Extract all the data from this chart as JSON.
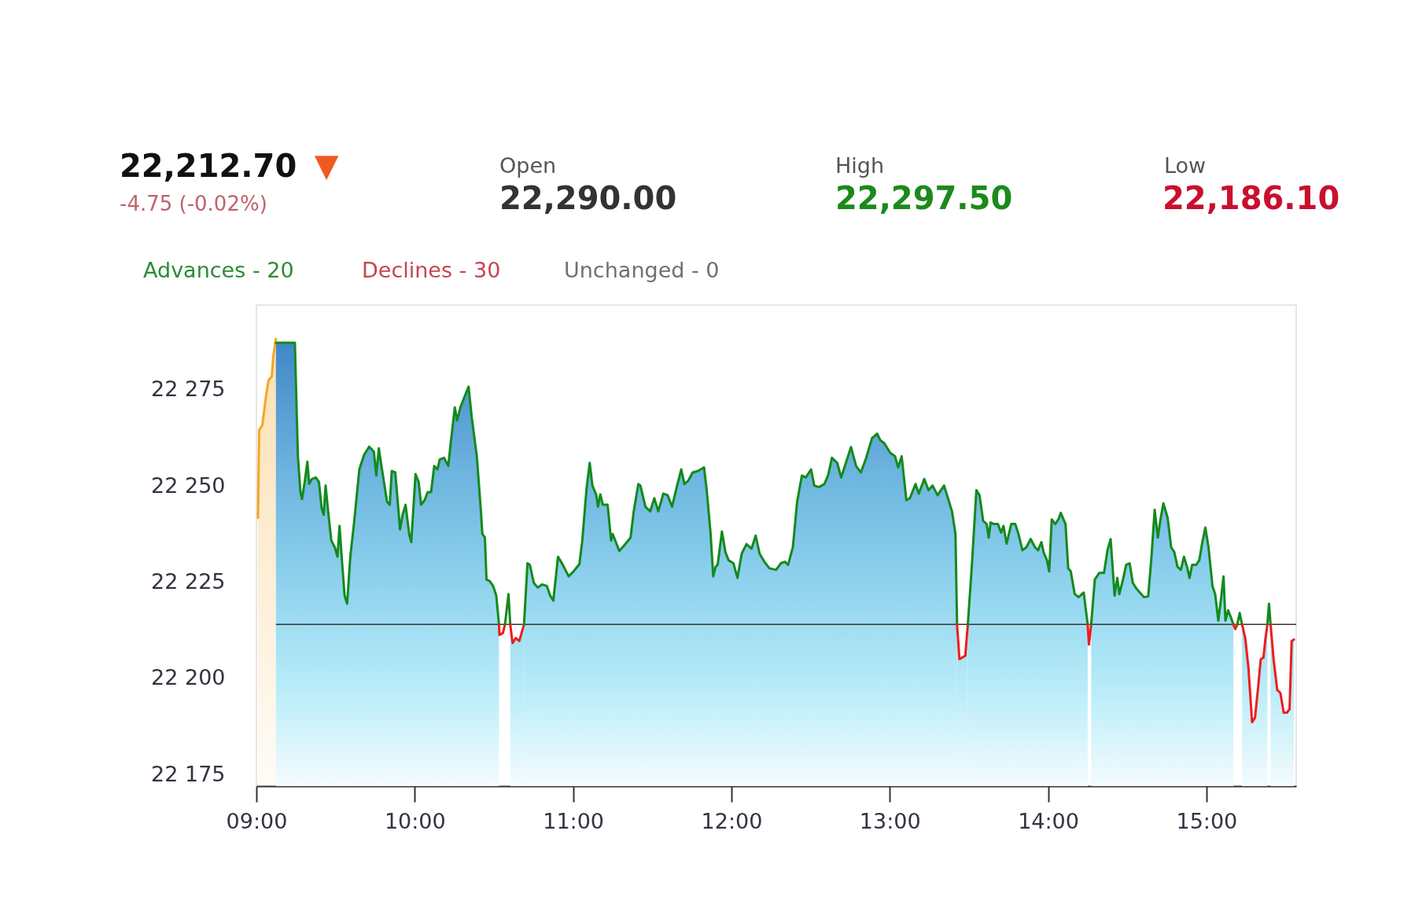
{
  "chart_data": {
    "type": "area",
    "title": "22,212.70",
    "subtitle": "-4.75 (-0.02%)",
    "annotations": [
      "▼",
      "Open",
      "22,290.00",
      "High",
      "22,297.50",
      "Low",
      "22,186.10",
      "Advances - 20",
      "Declines - 30",
      "Unchanged - 0"
    ],
    "xlim": [
      9,
      15.567
    ],
    "xticks": [
      {
        "value": 9,
        "label": "09:00"
      },
      {
        "value": 10,
        "label": "10:00"
      },
      {
        "value": 11,
        "label": "11:00"
      },
      {
        "value": 12,
        "label": "12:00"
      },
      {
        "value": 13,
        "label": "13:00"
      },
      {
        "value": 14,
        "label": "14:00"
      },
      {
        "value": 15,
        "label": "15:00"
      }
    ],
    "ylim": [
      22172,
      22297
    ],
    "yticks": [
      {
        "value": 22175,
        "label": "22 175"
      },
      {
        "value": 22200,
        "label": "22 200"
      },
      {
        "value": 22225,
        "label": "22 225"
      },
      {
        "value": 22250,
        "label": "22 250"
      },
      {
        "value": 22275,
        "label": "22 275"
      }
    ],
    "ref_lines": [
      {
        "axis": "y",
        "value": 22214,
        "color": "#333333"
      }
    ],
    "series": [
      {
        "color": "#f5a623",
        "x": [
          9.01,
          9.017,
          9.037,
          9.062,
          9.077,
          9.097,
          9.107,
          9.123
        ],
        "values": [
          22241.7,
          22264.5,
          22265.7,
          22273.7,
          22277.5,
          22278.4,
          22283.9,
          22288.2
        ]
      },
      {
        "color": "#138a1c",
        "x": [
          9.123,
          9.243,
          9.252,
          9.262,
          9.278,
          9.288,
          9.305,
          9.322,
          9.333,
          9.35,
          9.375,
          9.395,
          9.412,
          9.425,
          9.437,
          9.453,
          9.473,
          9.495,
          9.512,
          9.525,
          9.54,
          9.557,
          9.573,
          9.593,
          9.618,
          9.65,
          9.68,
          9.712,
          9.742,
          9.757,
          9.773,
          9.793,
          9.825,
          9.842,
          9.855,
          9.877,
          9.907,
          9.923,
          9.942,
          9.965,
          9.978,
          10.005,
          10.025,
          10.04,
          10.062,
          10.082,
          10.103,
          10.123,
          10.143,
          10.158,
          10.185,
          10.212,
          10.227,
          10.253,
          10.268,
          10.288,
          10.308,
          10.34,
          10.36,
          10.392,
          10.418,
          10.427,
          10.443,
          10.453,
          10.473,
          10.495,
          10.515,
          10.532
        ],
        "values": [
          22287.2,
          22287.2,
          22272.9,
          22257.7,
          22248.4,
          22246.6,
          22251.0,
          22256.3,
          22250.5,
          22251.8,
          22252.2,
          22251.0,
          22244.2,
          22242.5,
          22250.1,
          22243.4,
          22235.8,
          22234.1,
          22231.6,
          22239.6,
          22230.7,
          22221.5,
          22219.4,
          22231.6,
          22240.9,
          22254.3,
          22258.1,
          22260.2,
          22258.9,
          22252.7,
          22259.8,
          22254.3,
          22245.9,
          22245.1,
          22253.9,
          22253.5,
          22238.7,
          22242.5,
          22245.1,
          22237.5,
          22235.4,
          22253.1,
          22251.0,
          22245.1,
          22246.3,
          22248.4,
          22248.4,
          22255.2,
          22254.3,
          22256.9,
          22257.3,
          22255.2,
          22261.1,
          22270.4,
          22267.0,
          22270.4,
          22272.5,
          22275.8,
          22267.8,
          22257.7,
          22243.4,
          22237.5,
          22236.6,
          22225.7,
          22225.3,
          22224.0,
          22221.5,
          22214
        ]
      },
      {
        "type": "line",
        "color": "#ee1c1c",
        "x": [
          10.532,
          10.535,
          10.557,
          10.57
        ],
        "values": [
          22214,
          22211.3,
          22211.8,
          22214
        ]
      },
      {
        "type": "line",
        "color": "#138a1c",
        "x": [
          10.57,
          10.592,
          10.603
        ],
        "values": [
          22214,
          22221.9,
          22214
        ]
      },
      {
        "color": "#ee1c1c",
        "x": [
          10.603,
          10.618,
          10.638,
          10.66,
          10.69
        ],
        "values": [
          22214,
          22209.2,
          22210.5,
          22209.7,
          22214
        ]
      },
      {
        "color": "#138a1c",
        "x": [
          10.69,
          10.712,
          10.727,
          10.752,
          10.777,
          10.803,
          10.835,
          10.855,
          10.875,
          10.905,
          10.93,
          10.972,
          11.003,
          11.04,
          11.058,
          11.085,
          11.105,
          11.122,
          11.147,
          11.157,
          11.172,
          11.188,
          11.218,
          11.24,
          11.25,
          11.292,
          11.322,
          11.363,
          11.383,
          11.412,
          11.425,
          11.457,
          11.487,
          11.513,
          11.538,
          11.57,
          11.597,
          11.625,
          11.652,
          11.683,
          11.703,
          11.728,
          11.755,
          11.79,
          11.807,
          11.827,
          11.843,
          11.868,
          11.885,
          11.9,
          11.913,
          11.94,
          11.962,
          11.982,
          12.013,
          12.038,
          12.065,
          12.095,
          12.127,
          12.153,
          12.178,
          12.208,
          12.24,
          12.282,
          12.312,
          12.338,
          12.358,
          12.388,
          12.415,
          12.445,
          12.47,
          12.503,
          12.523,
          12.553,
          12.587,
          12.61,
          12.635,
          12.668,
          12.693,
          12.723,
          12.755,
          12.787,
          12.817,
          12.848,
          12.888,
          12.92,
          12.94,
          12.965,
          13.003,
          13.033,
          13.053,
          13.075,
          13.105,
          13.127,
          13.163,
          13.183,
          13.218,
          13.245,
          13.27,
          13.302,
          13.343,
          13.393,
          13.415,
          13.425
        ],
        "values": [
          22214,
          22229.9,
          22229.5,
          22224.8,
          22223.6,
          22224.4,
          22224.0,
          22221.5,
          22220.2,
          22231.6,
          22229.9,
          22226.5,
          22227.8,
          22229.7,
          22235.8,
          22249.3,
          22256.0,
          22250.1,
          22247.6,
          22244.6,
          22247.8,
          22245.1,
          22245.1,
          22235.8,
          22237.5,
          22233.1,
          22234.5,
          22236.6,
          22243.4,
          22250.5,
          22250.1,
          22244.6,
          22243.4,
          22246.8,
          22243.4,
          22248.0,
          22247.6,
          22244.6,
          22249.3,
          22254.3,
          22250.5,
          22251.4,
          22253.5,
          22253.9,
          22254.3,
          22254.8,
          22249.3,
          22237.9,
          22226.5,
          22229.0,
          22229.5,
          22238.2,
          22232.8,
          22230.7,
          22229.9,
          22226.1,
          22232.4,
          22234.9,
          22233.7,
          22237.1,
          22232.4,
          22230.3,
          22228.6,
          22228.2,
          22229.9,
          22230.3,
          22229.5,
          22234.1,
          22245.9,
          22252.7,
          22252.2,
          22254.3,
          22250.1,
          22249.7,
          22250.5,
          22252.7,
          22257.3,
          22256.0,
          22252.2,
          22256.0,
          22260.1,
          22255.2,
          22253.5,
          22256.9,
          22262.4,
          22263.6,
          22261.9,
          22261.1,
          22258.6,
          22257.7,
          22254.8,
          22257.7,
          22246.3,
          22246.8,
          22250.5,
          22248.0,
          22251.8,
          22248.9,
          22250.1,
          22247.6,
          22250.1,
          22243.4,
          22237.5,
          22214
        ]
      },
      {
        "color": "#ee1c1c",
        "x": [
          13.425,
          13.44,
          13.477,
          13.493
        ],
        "values": [
          22214,
          22205.0,
          22205.9,
          22214
        ]
      },
      {
        "color": "#138a1c",
        "x": [
          13.493,
          13.518,
          13.547,
          13.567,
          13.59,
          13.612,
          13.625,
          13.637,
          13.657,
          13.683,
          13.703,
          13.718,
          13.738,
          13.767,
          13.793,
          13.813,
          13.838,
          13.863,
          13.89,
          13.917,
          13.937,
          13.958,
          13.972,
          13.993,
          14.007,
          14.023,
          14.045,
          14.065,
          14.08,
          14.11,
          14.127,
          14.143,
          14.168,
          14.193,
          14.225,
          14.25
        ],
        "values": [
          22214,
          22229.0,
          22248.9,
          22247.6,
          22240.9,
          22240.1,
          22236.6,
          22240.5,
          22240.1,
          22240.1,
          22237.9,
          22239.6,
          22235.0,
          22240.1,
          22240.1,
          22237.5,
          22233.3,
          22234.1,
          22236.2,
          22234.1,
          22233.3,
          22235.4,
          22232.7,
          22230.7,
          22227.8,
          22241.3,
          22240.1,
          22241.3,
          22243.0,
          22240.1,
          22228.6,
          22227.8,
          22221.9,
          22221.1,
          22222.3,
          22214
        ]
      },
      {
        "type": "line",
        "color": "#ee1c1c",
        "x": [
          14.25,
          14.258,
          14.272
        ],
        "values": [
          22214,
          22208.8,
          22214
        ]
      },
      {
        "color": "#138a1c",
        "x": [
          14.272,
          14.295,
          14.323,
          14.353,
          14.375,
          14.395,
          14.42,
          14.437,
          14.45,
          14.473,
          14.493,
          14.515,
          14.535,
          14.56,
          14.58,
          14.605,
          14.632,
          14.653,
          14.673,
          14.693,
          14.708,
          14.728,
          14.755,
          14.777,
          14.797,
          14.817,
          14.838,
          14.858,
          14.88,
          14.893,
          14.91,
          14.935,
          14.955,
          14.972,
          14.993,
          15.013,
          15.038,
          15.055,
          15.075,
          15.092,
          15.108,
          15.12,
          15.137,
          15.153,
          15.17
        ],
        "values": [
          22214,
          22225.7,
          22227.4,
          22227.4,
          22233.3,
          22236.2,
          22221.5,
          22226.1,
          22221.9,
          22225.7,
          22229.5,
          22229.9,
          22224.8,
          22223.2,
          22222.3,
          22221.1,
          22221.3,
          22231.6,
          22243.8,
          22236.6,
          22240.9,
          22245.5,
          22241.7,
          22234.1,
          22232.8,
          22229.0,
          22228.2,
          22231.6,
          22228.6,
          22226.1,
          22229.5,
          22229.5,
          22230.7,
          22234.9,
          22239.2,
          22234.1,
          22224.0,
          22221.9,
          22215.0,
          22220.6,
          22226.5,
          22215.0,
          22217.7,
          22216.0,
          22214
        ]
      },
      {
        "type": "line",
        "color": "#ee1c1c",
        "x": [
          15.17,
          15.182,
          15.195
        ],
        "values": [
          22214,
          22212.8,
          22214
        ]
      },
      {
        "type": "line",
        "color": "#138a1c",
        "x": [
          15.195,
          15.21,
          15.225
        ],
        "values": [
          22214,
          22217.0,
          22214
        ]
      },
      {
        "color": "#ee1c1c",
        "x": [
          15.225,
          15.245,
          15.265,
          15.288,
          15.307,
          15.327,
          15.343,
          15.36,
          15.373,
          15.385
        ],
        "values": [
          22214,
          22210.5,
          22202.9,
          22188.6,
          22189.8,
          22197.9,
          22205.0,
          22205.4,
          22210.5,
          22214
        ]
      },
      {
        "type": "line",
        "color": "#138a1c",
        "x": [
          15.385,
          15.395,
          15.405
        ],
        "values": [
          22214,
          22219.4,
          22214
        ]
      },
      {
        "color": "#ee1c1c",
        "x": [
          15.405,
          15.425,
          15.447,
          15.467,
          15.488,
          15.508,
          15.525,
          15.538,
          15.553
        ],
        "values": [
          22214,
          22204.6,
          22197.0,
          22196.2,
          22191.1,
          22191.1,
          22192.0,
          22209.7,
          22210.1
        ]
      }
    ]
  }
}
